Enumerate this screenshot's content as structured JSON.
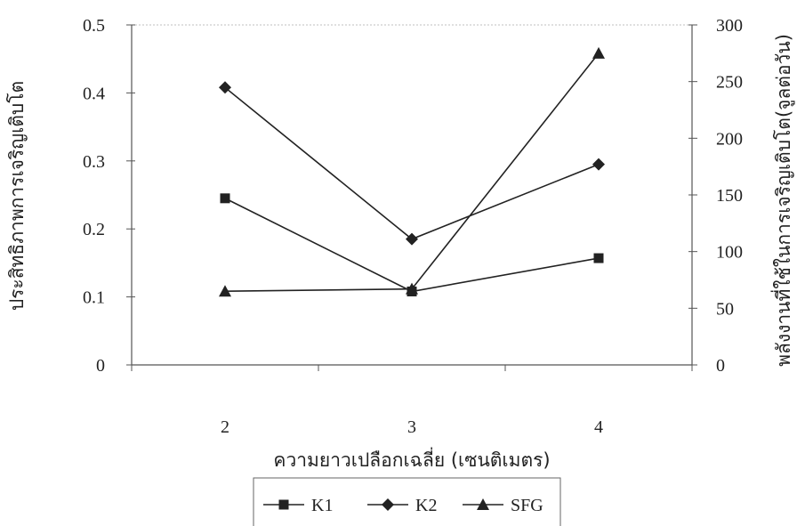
{
  "chart_data": {
    "type": "line",
    "title": "",
    "xlabel": "ความยาวเปลือกเฉลี่ย (เซนติเมตร)",
    "ylabel": "ประสิทธิภาพการเจริญเติบโต",
    "ylabel_right": "พลังงานที่ใช้ในการเจริญเติบโต(จูลต่อวัน)",
    "categories": [
      "2",
      "3",
      "4"
    ],
    "ylim": [
      0,
      0.5
    ],
    "ylim_right": [
      0,
      300
    ],
    "yticks": [
      "0",
      "0.1",
      "0.2",
      "0.3",
      "0.4",
      "0.5"
    ],
    "yticks_right": [
      "0",
      "50",
      "100",
      "150",
      "200",
      "250",
      "300"
    ],
    "legend_position": "bottom",
    "grid": false,
    "series": [
      {
        "name": "K1",
        "axis": "left",
        "marker": "square",
        "values": [
          0.245,
          0.108,
          0.157
        ]
      },
      {
        "name": "K2",
        "axis": "left",
        "marker": "diamond",
        "values": [
          0.408,
          0.185,
          0.295
        ]
      },
      {
        "name": "SFG",
        "axis": "right",
        "marker": "triangle",
        "values": [
          65,
          67,
          275
        ]
      }
    ]
  }
}
